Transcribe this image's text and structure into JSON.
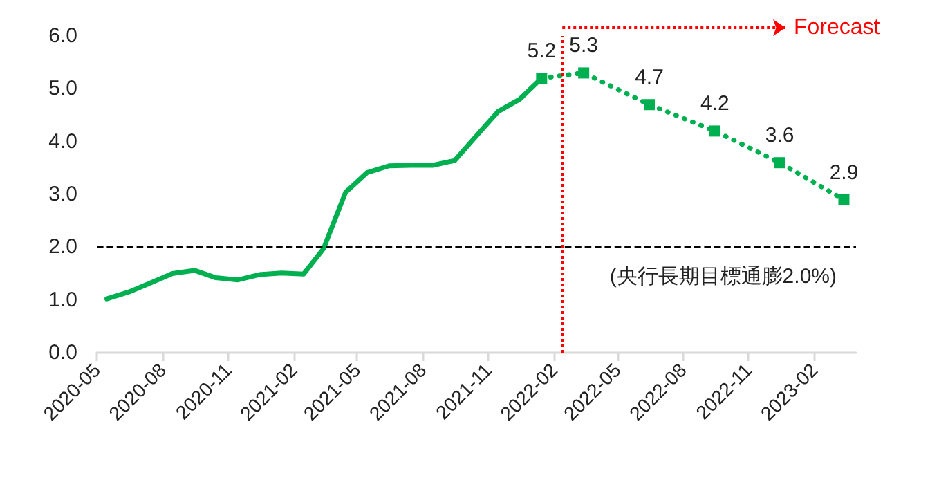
{
  "chart_data": {
    "type": "line",
    "xlim": [
      "2020-05",
      "2023-04"
    ],
    "xticks": [
      "2020-05",
      "2020-08",
      "2020-11",
      "2021-02",
      "2021-05",
      "2021-08",
      "2021-11",
      "2022-02",
      "2022-05",
      "2022-08",
      "2022-11",
      "2023-02"
    ],
    "ylim": [
      0,
      6
    ],
    "yticks": [
      {
        "value": 0,
        "label": "0.0"
      },
      {
        "value": 1,
        "label": "1.0"
      },
      {
        "value": 2,
        "label": "2.0"
      },
      {
        "value": 3,
        "label": "3.0"
      },
      {
        "value": 4,
        "label": "4.0"
      },
      {
        "value": 5,
        "label": "5.0"
      },
      {
        "value": 6,
        "label": "6.0"
      }
    ],
    "grid": false,
    "series": [
      {
        "color": "#00b050",
        "marker": "none",
        "line_style": "solid",
        "x": [
          "2020-05-15",
          "2020-06-15",
          "2020-07-15",
          "2020-08-15",
          "2020-09-15",
          "2020-10-15",
          "2020-11-15",
          "2020-12-15",
          "2021-01-15",
          "2021-02-15",
          "2021-03-15",
          "2021-04-15",
          "2021-05-15",
          "2021-06-15",
          "2021-07-15",
          "2021-08-15",
          "2021-09-15",
          "2021-10-15",
          "2021-11-15",
          "2021-12-15",
          "2022-01-15"
        ],
        "values": [
          1.02,
          1.15,
          1.32,
          1.5,
          1.56,
          1.42,
          1.38,
          1.48,
          1.51,
          1.49,
          1.97,
          3.04,
          3.41,
          3.54,
          3.55,
          3.55,
          3.64,
          4.1,
          4.57,
          4.8,
          5.2
        ]
      },
      {
        "color": "#00b050",
        "marker": "square",
        "line_style": "dotted",
        "x": [
          "2022-01-15",
          "2022-03-15",
          "2022-06-15",
          "2022-09-15",
          "2022-12-15",
          "2023-03-15"
        ],
        "values": [
          5.2,
          5.3,
          4.7,
          4.2,
          3.6,
          2.9
        ],
        "value_labels": [
          "5.2",
          "5.3",
          "4.7",
          "4.2",
          "3.6",
          "2.9"
        ]
      }
    ],
    "ref_lines": [
      {
        "axis": "y",
        "value": 2,
        "label": "(央行長期目標通膨2.0%)",
        "color": "#000000",
        "line_style": "dashed"
      },
      {
        "axis": "x",
        "value": "2022-02-13",
        "label": "Forecast",
        "color": "#ff0000",
        "line_style": "dotted"
      }
    ]
  }
}
